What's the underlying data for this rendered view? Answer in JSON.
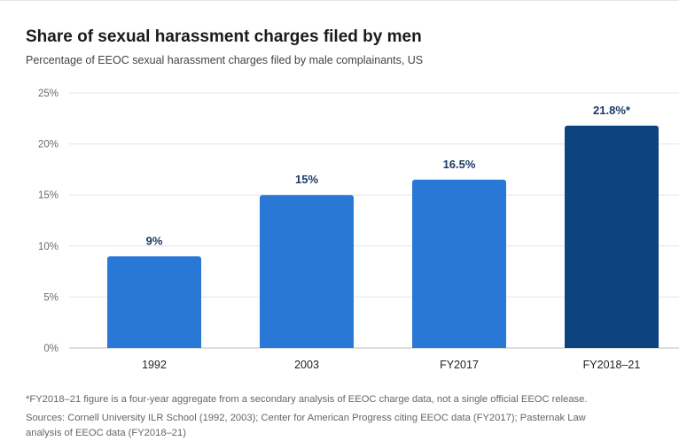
{
  "header": {
    "title": "Share of sexual harassment charges filed by men",
    "subtitle": "Percentage of EEOC sexual harassment charges filed by male complainants, US"
  },
  "colors": {
    "bar": "#2a78d6",
    "bar_highlight": "#0d437e",
    "grid": "#e4e4e4",
    "axis": "#bdbdbd"
  },
  "chart_data": {
    "type": "bar",
    "categories": [
      "1992",
      "2003",
      "FY2017",
      "FY2018–21"
    ],
    "values": [
      9,
      15,
      16.5,
      21.8
    ],
    "data_labels": [
      "9%",
      "15%",
      "16.5%",
      "21.8%*"
    ],
    "highlight_index": 3,
    "ylim": [
      0,
      25
    ],
    "yticks": [
      0,
      5,
      10,
      15,
      20,
      25
    ],
    "ytick_labels": [
      "0%",
      "5%",
      "10%",
      "15%",
      "20%",
      "25%"
    ],
    "grid": true
  },
  "footer": {
    "footnote": "*FY2018–21 figure is a four-year aggregate from a secondary analysis of EEOC charge data, not a single official EEOC release.",
    "sources": "Sources: Cornell University ILR School (1992, 2003); Center for American Progress citing EEOC data (FY2017); Pasternak Law analysis of EEOC data (FY2018–21)"
  }
}
